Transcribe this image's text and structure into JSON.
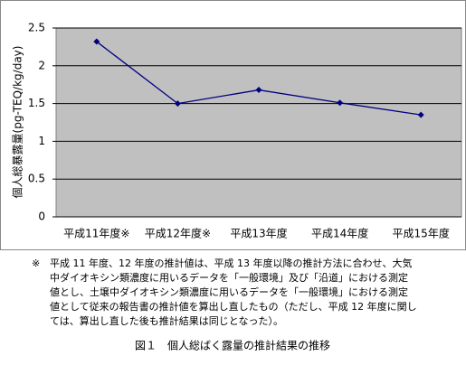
{
  "chart_data": {
    "type": "line",
    "y_label": "個人総暴露量(pg-TEQ/kg/day)",
    "categories": [
      "平成11年度※",
      "平成12年度※",
      "平成13年度",
      "平成14年度",
      "平成15年度"
    ],
    "series": [
      {
        "name": "個人総暴露量",
        "color": "#000080",
        "values": [
          2.32,
          1.5,
          1.68,
          1.51,
          1.35
        ]
      }
    ],
    "ylim": [
      0,
      2.5
    ],
    "yticks": [
      0,
      0.5,
      1,
      1.5,
      2,
      2.5
    ],
    "grid": true,
    "note_mark": "※",
    "note": [
      "平成 11 年度、12 年度の推計値は、平成 13 年度以降の推計方法に合わせ、大気",
      "中ダイオキシン類濃度に用いるデータを「一般環境」及び「沿道」における測定",
      "値とし、土壌中ダイオキシン類濃度に用いるデータを「一般環境」における測定",
      "値として従来の報告書の推計値を算出し直したもの（ただし、平成 12 年度に関し",
      "ては、算出し直した後も推計結果は同じとなった）。"
    ],
    "caption": "図１　個人総ばく露量の推計結果の推移"
  }
}
